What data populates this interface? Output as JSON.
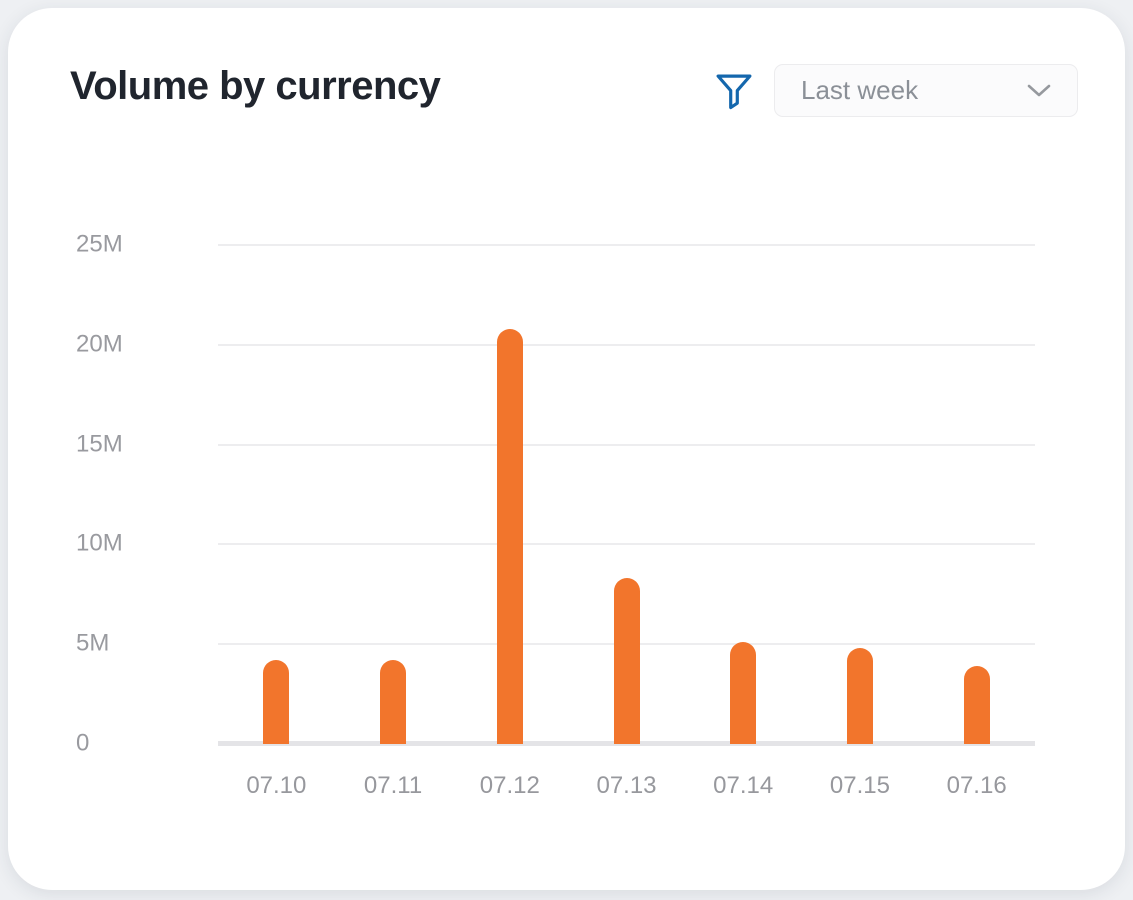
{
  "header": {
    "title": "Volume by currency"
  },
  "filter": {
    "icon": "funnel-icon",
    "color": "#1467ad"
  },
  "dropdown": {
    "selected_option": "Last week",
    "chevron_icon": "chevron-down-icon",
    "chevron_color": "#96999e"
  },
  "chart_data": {
    "type": "bar",
    "title": "Volume by currency",
    "categories": [
      "07.10",
      "07.11",
      "07.12",
      "07.13",
      "07.14",
      "07.15",
      "07.16"
    ],
    "values": [
      4.2,
      4.2,
      20.8,
      8.3,
      5.1,
      4.8,
      3.9
    ],
    "unit": "M",
    "xlabel": "",
    "ylabel": "",
    "ylim": [
      0,
      25
    ],
    "ytick_values": [
      25,
      20,
      15,
      10,
      5,
      0
    ],
    "ytick_labels": [
      "25M",
      "20M",
      "15M",
      "10M",
      "5M",
      "0"
    ],
    "grid": true,
    "legend": false,
    "bar_color": "#f2752c"
  }
}
